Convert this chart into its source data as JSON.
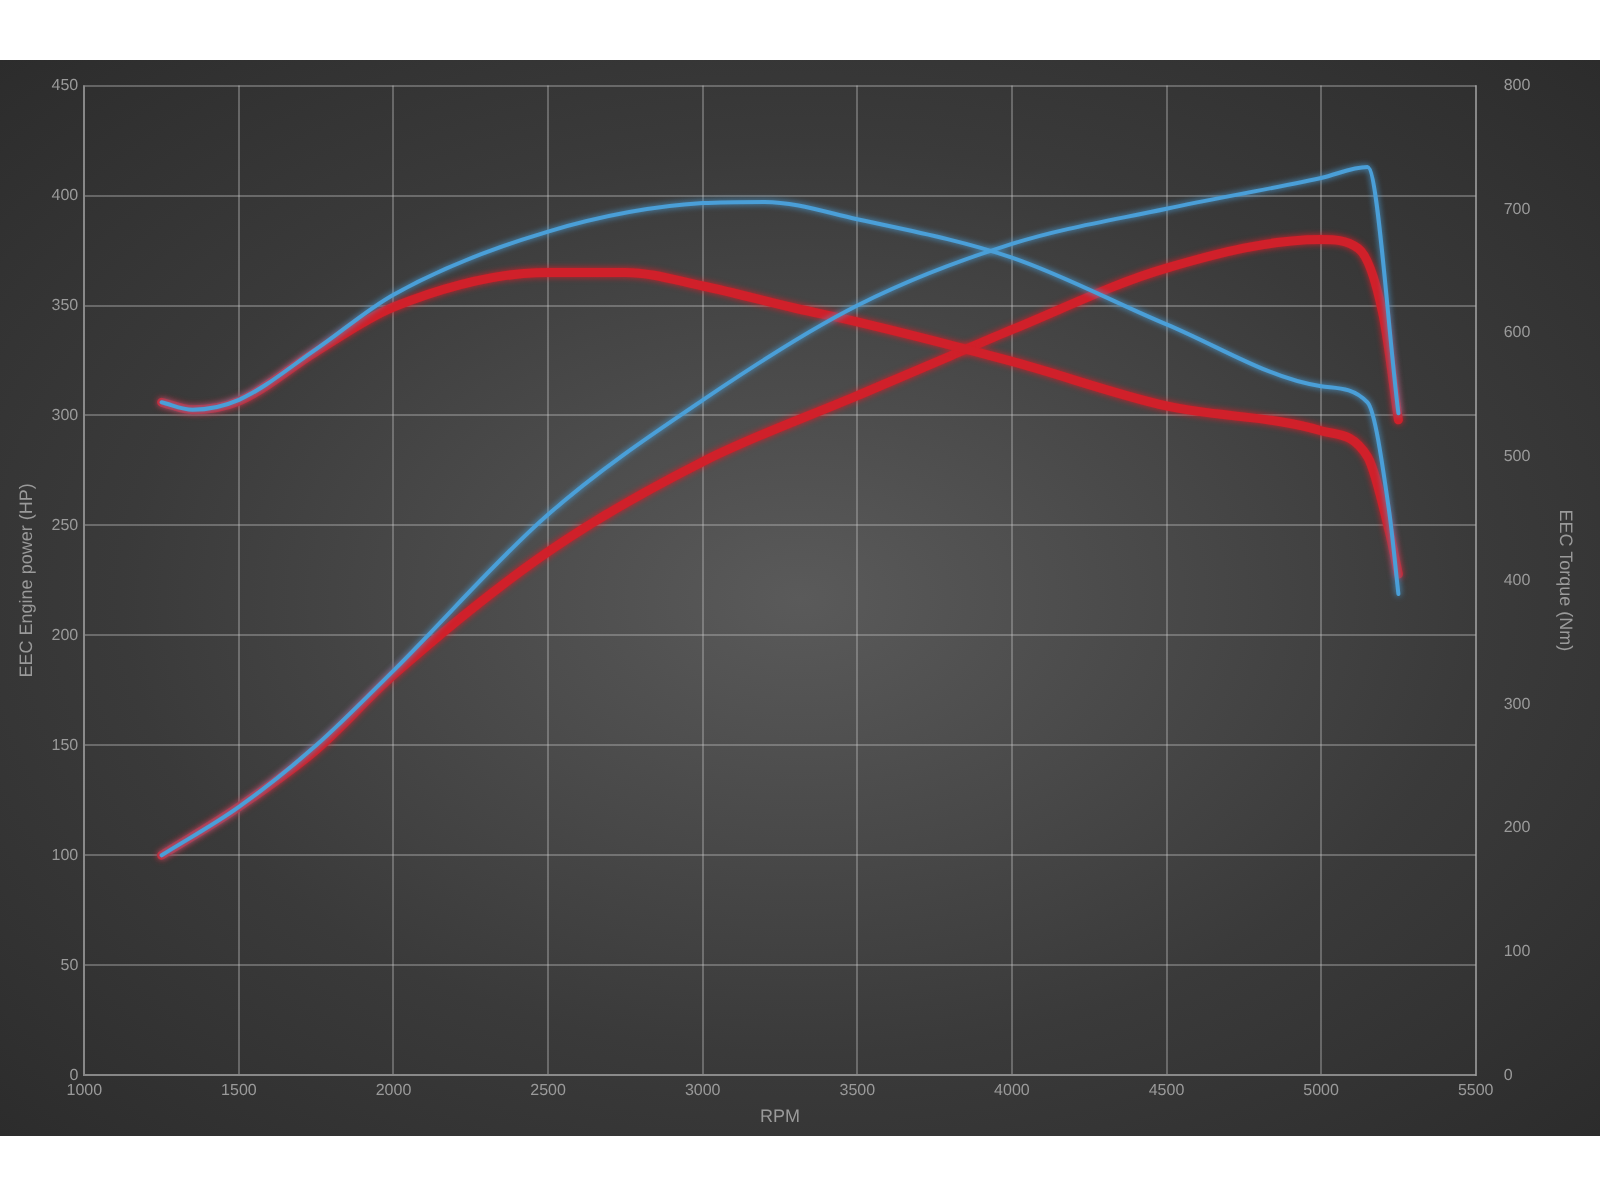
{
  "chart_data": {
    "type": "line",
    "xlabel": "RPM",
    "ylabel": "EEC Engine power (HP)",
    "y2label": "EEC Torque (Nm)",
    "xlim": [
      1000,
      5500
    ],
    "xticks": [
      1000,
      1500,
      2000,
      2500,
      3000,
      3500,
      4000,
      4500,
      5000,
      5500
    ],
    "ylim": [
      0,
      450
    ],
    "yticks": [
      0,
      50,
      100,
      150,
      200,
      250,
      300,
      350,
      400,
      450
    ],
    "y2lim": [
      0,
      800
    ],
    "y2ticks": [
      0,
      100,
      200,
      300,
      400,
      500,
      600,
      700,
      800
    ],
    "grid": true,
    "legend": false,
    "marker": "none",
    "line_style": "solid",
    "series": [
      {
        "color": "#d0202a",
        "axis": "y",
        "x": [
          1250,
          1500,
          1750,
          2000,
          2500,
          3000,
          3500,
          3800,
          4000,
          4500,
          5000,
          5120,
          5200,
          5250
        ],
        "values": [
          100,
          122,
          148,
          182,
          238,
          279,
          309,
          327,
          339,
          367,
          380,
          376,
          346,
          298
        ]
      },
      {
        "color": "#d0202a",
        "axis": "y2",
        "x": [
          1250,
          1350,
          1500,
          1750,
          2000,
          2500,
          2750,
          3000,
          3300,
          3500,
          4000,
          4500,
          5000,
          5150,
          5220,
          5250
        ],
        "values": [
          544,
          538,
          545,
          585,
          621,
          649,
          649,
          638,
          620,
          609,
          577,
          541,
          521,
          500,
          440,
          405
        ]
      },
      {
        "color": "#4a9fd8",
        "axis": "y",
        "x": [
          1250,
          1500,
          1750,
          2000,
          2500,
          3000,
          3500,
          4000,
          4500,
          5000,
          5150,
          5250
        ],
        "values": [
          100,
          122,
          150,
          184,
          255,
          307,
          350,
          378,
          394,
          408,
          413,
          301
        ]
      },
      {
        "color": "#4a9fd8",
        "axis": "y2",
        "x": [
          1250,
          1350,
          1500,
          1750,
          2000,
          2500,
          3000,
          3200,
          3500,
          4000,
          4500,
          5000,
          5150,
          5220,
          5250
        ],
        "values": [
          544,
          538,
          546,
          587,
          631,
          682,
          705,
          706,
          692,
          661,
          607,
          557,
          544,
          456,
          389
        ]
      }
    ]
  }
}
